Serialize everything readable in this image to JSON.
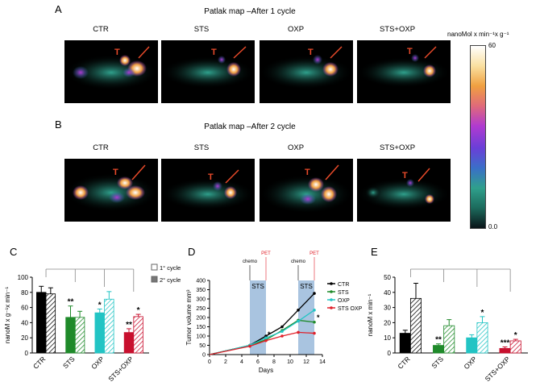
{
  "panel_a": {
    "letter": "A",
    "title": "Patlak map –After 1 cycle",
    "columns": [
      "CTR",
      "STS",
      "OXP",
      "STS+OXP"
    ],
    "marker": "T"
  },
  "panel_b": {
    "letter": "B",
    "title": "Patlak map –After 2 cycle",
    "columns": [
      "CTR",
      "STS",
      "OXP",
      "STS+OXP"
    ],
    "marker": "T"
  },
  "colorbar": {
    "unit": "nanoMol x min⁻¹x g⁻¹",
    "max_label": "60",
    "min_label": "0.0",
    "colors": [
      "#0a1418",
      "#1c6a5c",
      "#2fa08c",
      "#3a6fc8",
      "#6a3fd8",
      "#b03ad0",
      "#e06a7a",
      "#f0a040",
      "#fae0a0",
      "#ffffff"
    ]
  },
  "panel_c": {
    "letter": "C",
    "legend": [
      "1° cycle",
      "2° cycle"
    ],
    "chart_data": {
      "type": "bar",
      "ylabel": "nanoM x g⁻¹x min⁻¹",
      "ylim": [
        0,
        100
      ],
      "yticks": [
        "0",
        "20",
        "40",
        "60",
        "80",
        "100"
      ],
      "categories": [
        "CTR",
        "STS",
        "OXP",
        "STS+OXP"
      ],
      "bar_colors": [
        "#000000",
        "#1f8a2a",
        "#22c4c4",
        "#c8102e"
      ],
      "series": [
        {
          "name": "1° cycle",
          "values": [
            80,
            47,
            53,
            27
          ],
          "errors": [
            8,
            15,
            5,
            5
          ]
        },
        {
          "name": "2° cycle",
          "values": [
            78,
            47,
            71,
            48
          ],
          "errors": [
            8,
            8,
            10,
            3
          ]
        }
      ],
      "significance": [
        "",
        "**",
        "*",
        "**"
      ],
      "significance_2": [
        "",
        "",
        "",
        "*"
      ]
    }
  },
  "panel_d": {
    "letter": "D",
    "annotations": {
      "chemo": "chemo",
      "pet": "PET",
      "sts": "STS"
    },
    "chart_data": {
      "type": "line",
      "xlabel": "Days",
      "ylabel": "Tumor volume mm³",
      "xlim": [
        0,
        14
      ],
      "ylim": [
        0,
        400
      ],
      "xticks": [
        "0",
        "2",
        "4",
        "6",
        "8",
        "10",
        "12",
        "14"
      ],
      "yticks": [
        "0",
        "50",
        "100",
        "150",
        "200",
        "250",
        "300",
        "350",
        "400"
      ],
      "x": [
        5,
        7,
        9,
        11,
        13
      ],
      "series": [
        {
          "name": "CTR",
          "color": "#000000",
          "values": [
            50,
            100,
            150,
            240,
            330
          ]
        },
        {
          "name": "STS",
          "color": "#1f8a2a",
          "values": [
            50,
            80,
            130,
            185,
            175
          ]
        },
        {
          "name": "OXP",
          "color": "#22c4c4",
          "values": [
            50,
            90,
            125,
            180,
            240
          ]
        },
        {
          "name": "STS OXP",
          "color": "#e0202a",
          "values": [
            45,
            75,
            100,
            120,
            115
          ]
        }
      ],
      "significance": "*"
    }
  },
  "panel_e": {
    "letter": "E",
    "chart_data": {
      "type": "bar",
      "ylabel": "nanoM x min⁻¹",
      "ylim": [
        0,
        50
      ],
      "yticks": [
        "0",
        "10",
        "20",
        "30",
        "40",
        "50"
      ],
      "categories": [
        "CTR",
        "STS",
        "OXP",
        "STS+OXP"
      ],
      "bar_colors": [
        "#000000",
        "#1f8a2a",
        "#22c4c4",
        "#c8102e"
      ],
      "series": [
        {
          "name": "1° cycle",
          "values": [
            13,
            5,
            10,
            3
          ],
          "errors": [
            2,
            1,
            2,
            1
          ]
        },
        {
          "name": "2° cycle",
          "values": [
            36,
            18,
            20,
            8
          ],
          "errors": [
            10,
            4,
            4,
            1
          ]
        }
      ],
      "significance": [
        "",
        "**",
        "",
        "***"
      ],
      "significance_2": [
        "",
        "",
        "*",
        "*"
      ]
    }
  }
}
